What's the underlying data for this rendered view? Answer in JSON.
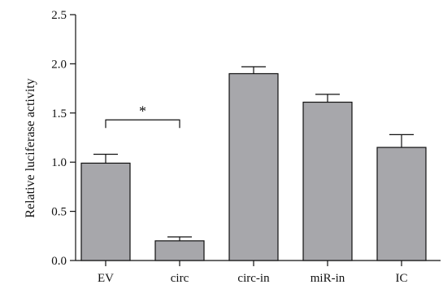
{
  "chart_data": {
    "type": "bar",
    "title": "",
    "xlabel": "",
    "ylabel": "Relative luciferase activity",
    "categories": [
      "EV",
      "circ",
      "circ-in",
      "miR-in",
      "IC"
    ],
    "values": [
      0.99,
      0.2,
      1.9,
      1.61,
      1.15
    ],
    "error_upper": [
      1.08,
      0.24,
      1.97,
      1.69,
      1.28
    ],
    "ylim": [
      0,
      2.5
    ],
    "yticks": [
      "0.0",
      "0.5",
      "1.0",
      "1.5",
      "2.0",
      "2.5"
    ],
    "bar_color": "#a7a7ab",
    "edge_color": "#111111",
    "grid": false,
    "legend": "none",
    "annotations": [
      {
        "text": "*",
        "from": "EV",
        "to": "circ",
        "y": 1.43
      }
    ]
  }
}
